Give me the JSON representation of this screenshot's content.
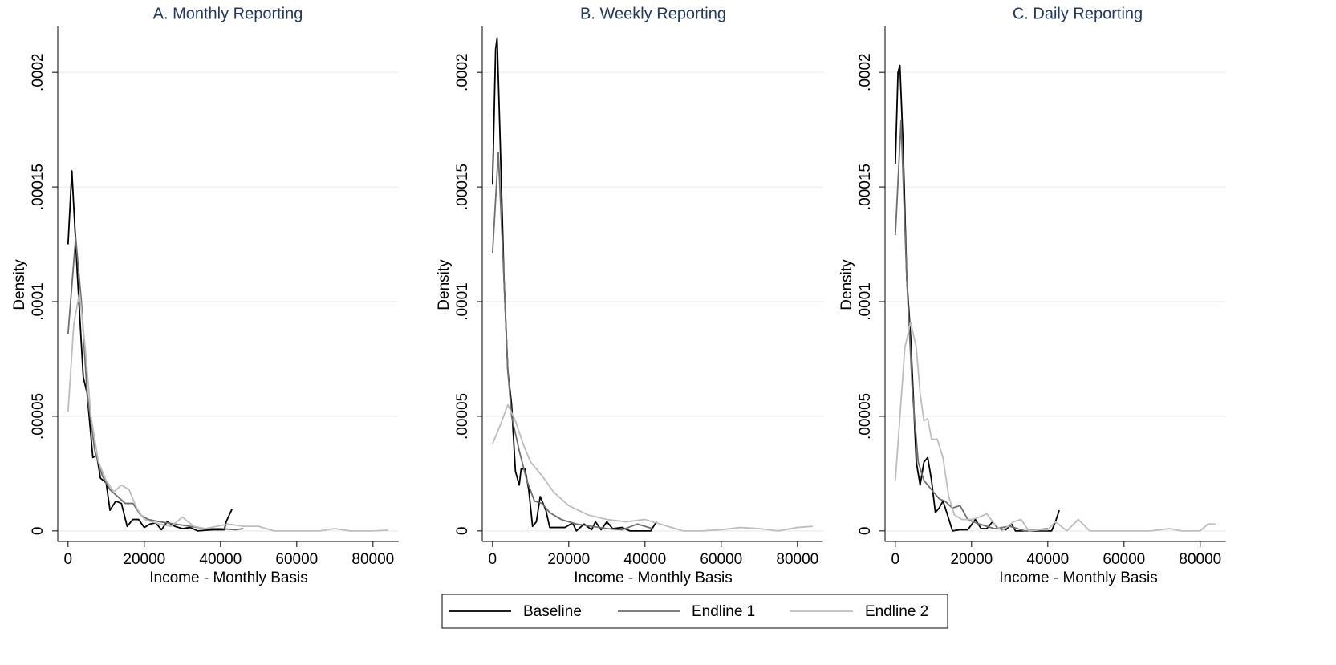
{
  "chart_data": [
    {
      "type": "line",
      "title": "A. Monthly Reporting",
      "x_label": "Income - Monthly Basis",
      "y_label": "Density",
      "xlim": [
        -2700,
        86700
      ],
      "ylim": [
        -4.6e-06,
        0.00022
      ],
      "xticks": [
        0,
        20000,
        40000,
        60000,
        80000
      ],
      "yticks": [
        0,
        {
          "value": 5e-05,
          "label": ".00005"
        },
        {
          "value": 0.0001,
          "label": ".0001"
        },
        {
          "value": 0.00015,
          "label": ".00015"
        },
        {
          "value": 0.0002,
          "label": ".0002"
        }
      ],
      "grid": true,
      "series": [
        {
          "name": "Baseline",
          "color": "#000000",
          "x": [
            0,
            1000,
            2500,
            4000,
            5000,
            6500,
            7500,
            8500,
            10000,
            11000,
            12500,
            14000,
            15500,
            17000,
            18500,
            20000,
            21500,
            23000,
            24500,
            26000,
            28000,
            30000,
            32000,
            34000,
            38000,
            41000,
            41500,
            43000
          ],
          "values": [
            0.000125,
            0.000157,
            0.00011,
            6.7e-05,
            6e-05,
            3.2e-05,
            3.3e-05,
            2.3e-05,
            2.1e-05,
            9e-06,
            1.3e-05,
            1.2e-05,
            2e-06,
            5e-06,
            5e-06,
            1.5e-06,
            3e-06,
            3.5e-06,
            5e-07,
            4e-06,
            2e-06,
            1e-06,
            1.5e-06,
            0,
            5e-07,
            5e-07,
            4e-06,
            9.5e-06
          ]
        },
        {
          "name": "Endline 1",
          "color": "#6e6e6e",
          "x": [
            0,
            2000,
            3500,
            5000,
            7000,
            9000,
            11000,
            13000,
            15000,
            17000,
            19000,
            21000,
            24000,
            28000,
            32000,
            36000,
            40000,
            44000,
            46000
          ],
          "values": [
            8.6e-05,
            0.000128,
            0.0001,
            6e-05,
            3.5e-05,
            2.4e-05,
            1.8e-05,
            1.5e-05,
            1.2e-05,
            1.2e-05,
            7e-06,
            5e-06,
            4e-06,
            3e-06,
            2e-06,
            1e-06,
            1e-06,
            5e-07,
            1e-06
          ]
        },
        {
          "name": "Endline 2",
          "color": "#bdbdbd",
          "x": [
            0,
            1500,
            3000,
            4500,
            6000,
            8000,
            10000,
            12000,
            14000,
            16000,
            18000,
            20000,
            24000,
            27000,
            30000,
            33000,
            36000,
            39000,
            42000,
            46000,
            50000,
            54000,
            60000,
            66000,
            70000,
            74000,
            80000,
            84000
          ],
          "values": [
            5.2e-05,
            9e-05,
            0.000104,
            8e-05,
            5e-05,
            3e-05,
            2.2e-05,
            1.7e-05,
            2e-05,
            1.8e-05,
            1e-05,
            5e-06,
            3e-06,
            2e-06,
            6e-06,
            2e-06,
            1e-06,
            2e-06,
            3e-06,
            2e-06,
            2e-06,
            0,
            0,
            0,
            1e-06,
            0,
            0,
            3e-07
          ]
        }
      ]
    },
    {
      "type": "line",
      "title": "B. Weekly Reporting",
      "x_label": "Income - Monthly Basis",
      "y_label": "Density",
      "xlim": [
        -2700,
        86700
      ],
      "ylim": [
        -4.6e-06,
        0.00022
      ],
      "xticks": [
        0,
        20000,
        40000,
        60000,
        80000
      ],
      "yticks": [
        0,
        {
          "value": 5e-05,
          "label": ".00005"
        },
        {
          "value": 0.0001,
          "label": ".0001"
        },
        {
          "value": 0.00015,
          "label": ".00015"
        },
        {
          "value": 0.0002,
          "label": ".0002"
        }
      ],
      "grid": true,
      "series": [
        {
          "name": "Baseline",
          "color": "#000000",
          "x": [
            0,
            800,
            1200,
            2000,
            3000,
            4000,
            5000,
            6000,
            7000,
            7500,
            8500,
            9500,
            10500,
            11500,
            12500,
            14000,
            15000,
            17000,
            19000,
            21000,
            22000,
            24000,
            26000,
            27000,
            28500,
            30000,
            31500,
            34000,
            36000,
            40000,
            41500,
            43000
          ],
          "values": [
            0.000151,
            0.00021,
            0.000215,
            0.00017,
            0.00011,
            7e-05,
            5.5e-05,
            2.6e-05,
            2e-05,
            2.7e-05,
            2.7e-05,
            1.8e-05,
            2e-06,
            4e-06,
            1.5e-05,
            9e-06,
            1.5e-06,
            1.5e-06,
            1.5e-06,
            3.5e-06,
            0,
            3e-06,
            5e-07,
            4e-06,
            5e-07,
            4e-06,
            1e-06,
            1.5e-06,
            0,
            0,
            0,
            4e-06
          ]
        },
        {
          "name": "Endline 1",
          "color": "#6e6e6e",
          "x": [
            0,
            1500,
            3000,
            4000,
            5000,
            7000,
            9000,
            11000,
            13000,
            15000,
            18000,
            22000,
            26000,
            30000,
            34000,
            38000,
            42000
          ],
          "values": [
            0.000121,
            0.000165,
            0.00011,
            7e-05,
            5e-05,
            3.5e-05,
            2.2e-05,
            1.3e-05,
            1.2e-05,
            8e-06,
            5e-06,
            3e-06,
            2e-06,
            1e-06,
            5e-07,
            3e-06,
            1e-06
          ]
        },
        {
          "name": "Endline 2",
          "color": "#bdbdbd",
          "x": [
            0,
            2000,
            4000,
            6000,
            8000,
            10000,
            13000,
            16000,
            20000,
            25000,
            30000,
            35000,
            40000,
            45000,
            50000,
            55000,
            60000,
            65000,
            70000,
            75000,
            80000,
            84000
          ],
          "values": [
            3.8e-05,
            4.6e-05,
            5.5e-05,
            4.8e-05,
            3.8e-05,
            3e-05,
            2.4e-05,
            1.7e-05,
            1.1e-05,
            7e-06,
            5e-06,
            4e-06,
            5e-06,
            2.5e-06,
            0,
            0,
            5e-07,
            1.5e-06,
            1e-06,
            0,
            1.5e-06,
            2e-06
          ]
        }
      ]
    },
    {
      "type": "line",
      "title": "C. Daily Reporting",
      "x_label": "Income - Monthly Basis",
      "y_label": "Density",
      "xlim": [
        -2700,
        86700
      ],
      "ylim": [
        -4.6e-06,
        0.00022
      ],
      "xticks": [
        0,
        20000,
        40000,
        60000,
        80000
      ],
      "yticks": [
        0,
        {
          "value": 5e-05,
          "label": ".00005"
        },
        {
          "value": 0.0001,
          "label": ".0001"
        },
        {
          "value": 0.00015,
          "label": ".00015"
        },
        {
          "value": 0.0002,
          "label": ".0002"
        }
      ],
      "grid": true,
      "series": [
        {
          "name": "Baseline",
          "color": "#000000",
          "x": [
            0,
            700,
            1200,
            2000,
            3000,
            4000,
            5500,
            6500,
            7500,
            8500,
            9500,
            10500,
            11500,
            12500,
            13500,
            15000,
            17000,
            19000,
            21000,
            22500,
            24000,
            25500,
            27000,
            29000,
            30500,
            31500,
            36000,
            40000,
            41000,
            42000,
            43000
          ],
          "values": [
            0.00016,
            0.0002,
            0.000203,
            0.00017,
            0.00011,
            8.5e-05,
            3e-05,
            2e-05,
            3e-05,
            3.2e-05,
            2.2e-05,
            8e-06,
            1e-05,
            1.3e-05,
            8e-06,
            0,
            5e-07,
            5e-07,
            5e-06,
            1e-06,
            1e-06,
            4e-06,
            1e-06,
            5e-07,
            3e-06,
            0,
            0,
            0,
            0,
            4e-06,
            9e-06
          ]
        },
        {
          "name": "Endline 1",
          "color": "#6e6e6e",
          "x": [
            0,
            1500,
            3000,
            4500,
            6000,
            7500,
            9500,
            11500,
            13000,
            15000,
            17000,
            19000,
            22000,
            26000,
            30000,
            34000,
            37000,
            40000
          ],
          "values": [
            0.000129,
            0.000179,
            0.00011,
            6e-05,
            3e-05,
            2.2e-05,
            1.8e-05,
            1.4e-05,
            1.3e-05,
            1e-05,
            1.1e-05,
            5e-06,
            3e-06,
            1e-06,
            2e-06,
            0,
            5e-07,
            1e-06
          ]
        },
        {
          "name": "Endline 2",
          "color": "#bdbdbd",
          "x": [
            0,
            1000,
            2500,
            4000,
            5500,
            6500,
            7500,
            8500,
            9500,
            11000,
            12500,
            14000,
            15500,
            17500,
            20000,
            22000,
            24000,
            26000,
            28000,
            31000,
            33000,
            35000,
            38000,
            40000,
            42000,
            45000,
            48000,
            51000,
            55000,
            62000,
            67000,
            72000,
            75000,
            80000,
            82000,
            84000
          ],
          "values": [
            2.2e-05,
            4.5e-05,
            8e-05,
            9.1e-05,
            8e-05,
            6e-05,
            4.8e-05,
            4.9e-05,
            4e-05,
            4e-05,
            3.2e-05,
            1.5e-05,
            7e-06,
            5e-06,
            5e-06,
            6e-06,
            7.5e-06,
            3e-06,
            0,
            4e-06,
            5e-06,
            0,
            5e-07,
            5e-07,
            4e-06,
            0,
            5e-06,
            0,
            0,
            0,
            0,
            1e-06,
            0,
            0,
            3e-06,
            3e-06
          ]
        }
      ]
    }
  ]
}
